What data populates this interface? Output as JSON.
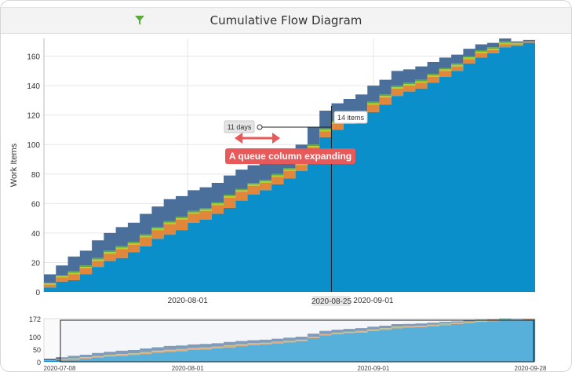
{
  "header": {
    "title": "Cumulative Flow Diagram",
    "filter_icon": "filter-icon"
  },
  "colors": {
    "done": "#0a8fcb",
    "orange": "#e0873c",
    "yellow": "#b7cc2a",
    "green": "#5aa84a",
    "backlog": "#4a6f9a",
    "annotation": "#e8595a",
    "navigator_bg": "#e8eef7"
  },
  "annotations": {
    "days_label": "11 days",
    "items_label": "14 items",
    "callout": "A queue column expanding",
    "crosshair_date": "2020-08-25"
  },
  "chart_data": {
    "type": "area",
    "title": "Cumulative Flow Diagram",
    "ylabel": "Work Items",
    "xlabel": "",
    "x_range": [
      "2020-07-08",
      "2020-09-28"
    ],
    "ylim": [
      0,
      172
    ],
    "y_ticks": [
      0,
      20,
      40,
      60,
      80,
      100,
      120,
      140,
      160
    ],
    "x_ticks": [
      "2020-08-01",
      "2020-09-01"
    ],
    "grid": true,
    "stacked": true,
    "x": [
      "2020-07-08",
      "2020-07-10",
      "2020-07-12",
      "2020-07-14",
      "2020-07-16",
      "2020-07-18",
      "2020-07-20",
      "2020-07-22",
      "2020-07-24",
      "2020-07-26",
      "2020-07-28",
      "2020-07-30",
      "2020-08-01",
      "2020-08-03",
      "2020-08-05",
      "2020-08-07",
      "2020-08-09",
      "2020-08-11",
      "2020-08-13",
      "2020-08-15",
      "2020-08-17",
      "2020-08-19",
      "2020-08-21",
      "2020-08-23",
      "2020-08-25",
      "2020-08-27",
      "2020-08-29",
      "2020-08-31",
      "2020-09-02",
      "2020-09-04",
      "2020-09-06",
      "2020-09-08",
      "2020-09-10",
      "2020-09-12",
      "2020-09-14",
      "2020-09-16",
      "2020-09-18",
      "2020-09-20",
      "2020-09-22",
      "2020-09-24",
      "2020-09-26",
      "2020-09-28"
    ],
    "series": [
      {
        "values": [
          3,
          7,
          8,
          12,
          17,
          21,
          23,
          27,
          31,
          36,
          39,
          42,
          47,
          49,
          53,
          57,
          62,
          66,
          69,
          73,
          77,
          82,
          94,
          105,
          110,
          114,
          116,
          122,
          127,
          133,
          136,
          138,
          142,
          146,
          150,
          155,
          159,
          162,
          166,
          167,
          169,
          172
        ]
      },
      {
        "values": [
          2,
          3,
          4,
          4,
          4,
          5,
          6,
          5,
          6,
          6,
          7,
          7,
          6,
          6,
          6,
          7,
          6,
          6,
          5,
          5,
          5,
          4,
          4,
          4,
          4,
          4,
          5,
          5,
          5,
          5,
          4,
          4,
          4,
          4,
          3,
          3,
          3,
          2,
          2,
          1,
          1,
          0
        ]
      },
      {
        "values": [
          1,
          1,
          1,
          1,
          1,
          1,
          1,
          1,
          1,
          1,
          1,
          1,
          1,
          1,
          1,
          1,
          1,
          1,
          1,
          1,
          1,
          1,
          1,
          1,
          1,
          1,
          1,
          1,
          1,
          1,
          1,
          1,
          1,
          1,
          1,
          1,
          1,
          1,
          1,
          1,
          0,
          0
        ]
      },
      {
        "values": [
          0,
          0,
          1,
          1,
          1,
          1,
          1,
          1,
          1,
          1,
          1,
          1,
          1,
          1,
          1,
          1,
          1,
          1,
          1,
          1,
          1,
          1,
          1,
          1,
          1,
          1,
          1,
          1,
          1,
          1,
          1,
          1,
          1,
          1,
          1,
          1,
          1,
          1,
          1,
          0,
          0,
          0
        ]
      },
      {
        "values": [
          6,
          7,
          10,
          10,
          12,
          12,
          13,
          13,
          14,
          14,
          15,
          14,
          14,
          14,
          13,
          13,
          13,
          12,
          12,
          12,
          12,
          12,
          12,
          12,
          12,
          11,
          11,
          11,
          10,
          10,
          9,
          9,
          8,
          7,
          6,
          5,
          4,
          3,
          2,
          1,
          1,
          0
        ]
      }
    ],
    "navigator": {
      "y_ticks": [
        0,
        50,
        100,
        172
      ],
      "x_ticks": [
        "2020-07-08",
        "2020-08-01",
        "2020-09-01",
        "2020-09-28"
      ]
    }
  }
}
